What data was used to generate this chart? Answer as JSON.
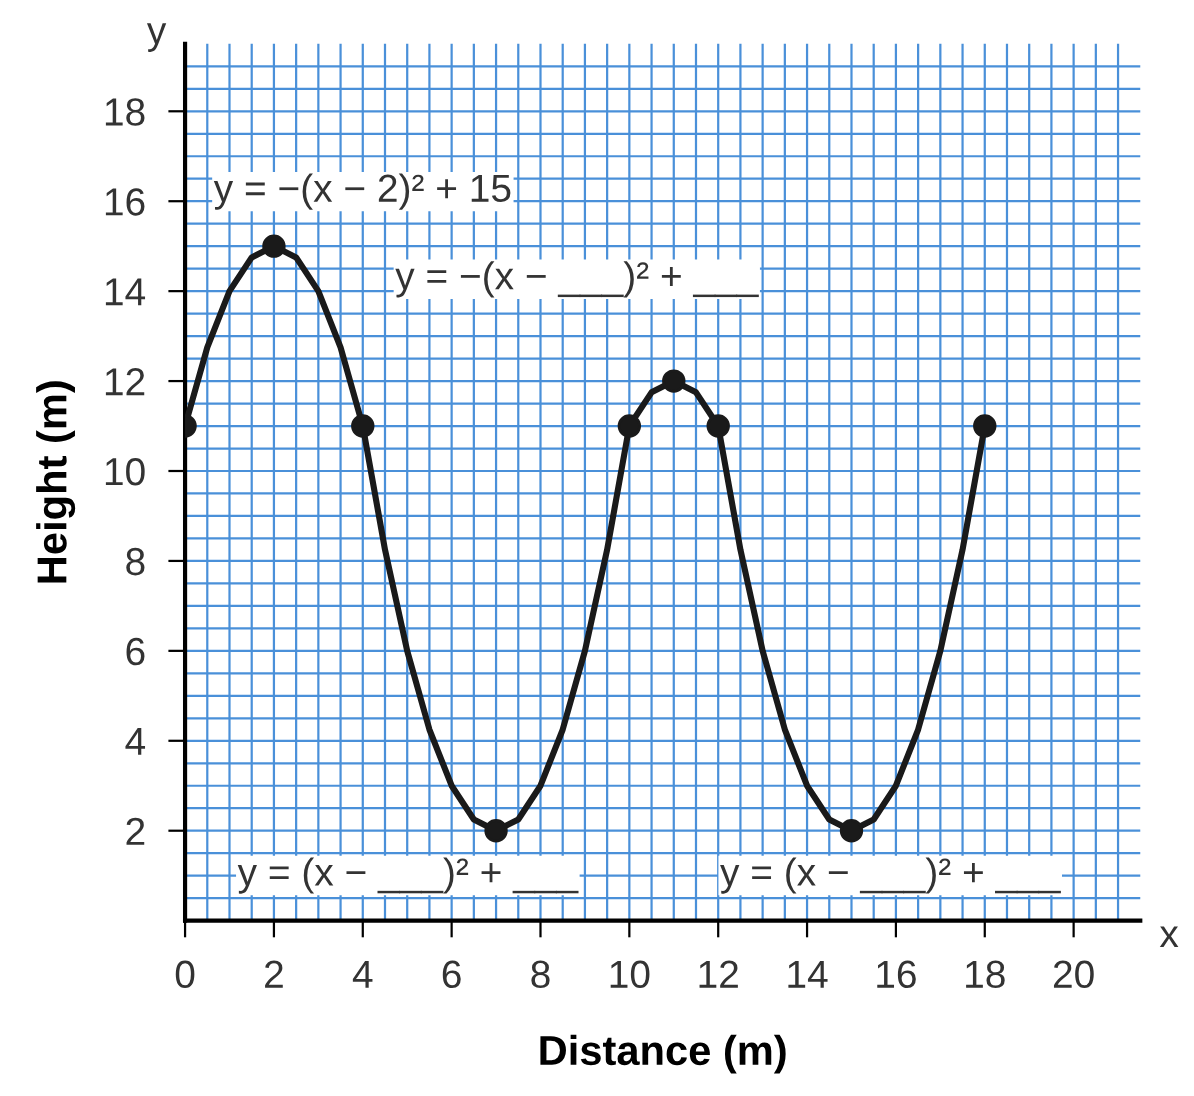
{
  "chart_data": {
    "type": "line",
    "xlabel": "Distance (m)",
    "ylabel": "Height (m)",
    "series": [
      {
        "color": "#1a1a1a",
        "marker": "none",
        "x": [
          0,
          0.5,
          1,
          1.5,
          2,
          2.5,
          3,
          3.5,
          4,
          4.5,
          5,
          5.5,
          6,
          6.5,
          7,
          7.5,
          8,
          8.5,
          9,
          9.5,
          10,
          10.5,
          11,
          11.5,
          12,
          12.5,
          13,
          13.5,
          14,
          14.5,
          15,
          15.5,
          16,
          16.5,
          17,
          17.5,
          18
        ],
        "values": [
          11,
          12.75,
          14,
          14.75,
          15,
          14.75,
          14,
          12.75,
          11,
          8.25,
          6,
          4.25,
          3,
          2.25,
          2,
          2.25,
          3,
          4.25,
          6,
          8.25,
          11,
          11.75,
          12,
          11.75,
          11,
          8.25,
          6,
          4.25,
          3,
          2.25,
          2,
          2.25,
          3,
          4.25,
          6,
          8.25,
          11
        ]
      },
      {
        "type": "scatter",
        "color": "#1a1a1a",
        "marker": "circle",
        "x": [
          0,
          2,
          4,
          7,
          10,
          11,
          12,
          15,
          18
        ],
        "values": [
          11,
          15,
          11,
          2,
          11,
          12,
          11,
          2,
          11
        ]
      }
    ],
    "xlim": [
      0,
      21.5
    ],
    "ylim": [
      0,
      19.5
    ],
    "xticks": [
      0,
      2,
      4,
      6,
      8,
      10,
      12,
      14,
      16,
      18,
      20
    ],
    "yticks": [
      2,
      4,
      6,
      8,
      10,
      12,
      14,
      16,
      18
    ],
    "grid": true,
    "line_style": "solid",
    "annotations": [
      "y = −(x − 2)² + 15",
      "y = −(x − ___)² + ___",
      "y = (x − ___)² + ___",
      "y = (x − ___)² + ___",
      "x",
      "y"
    ]
  }
}
